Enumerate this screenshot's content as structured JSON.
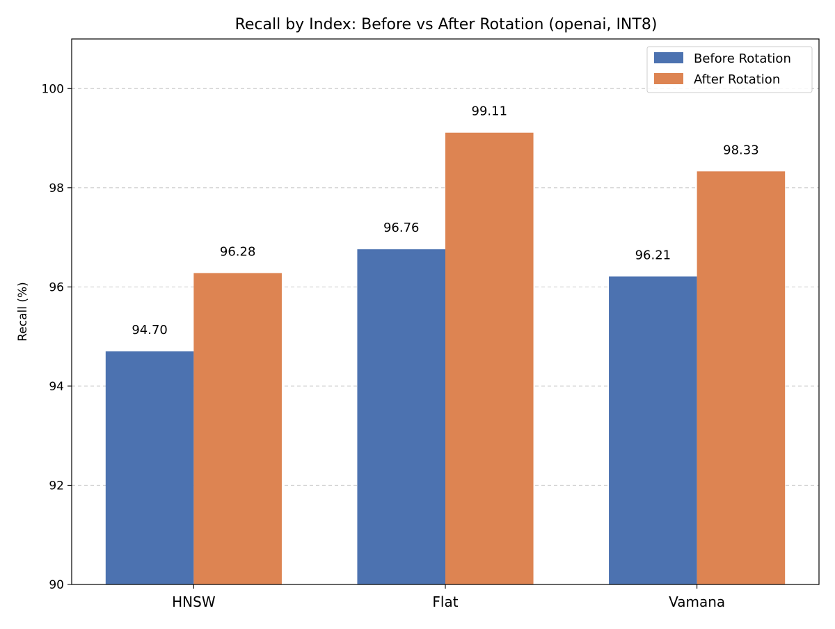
{
  "chart_data": {
    "type": "bar",
    "title": "Recall by Index: Before vs After Rotation (openai, INT8)",
    "xlabel": "",
    "ylabel": "Recall (%)",
    "categories": [
      "HNSW",
      "Flat",
      "Vamana"
    ],
    "series": [
      {
        "name": "Before Rotation",
        "values": [
          94.7,
          96.76,
          96.21
        ],
        "labels": [
          "94.70",
          "96.76",
          "96.21"
        ],
        "color": "#4c72b0"
      },
      {
        "name": "After Rotation",
        "values": [
          96.28,
          99.11,
          98.33
        ],
        "labels": [
          "96.28",
          "99.11",
          "98.33"
        ],
        "color": "#dd8452"
      }
    ],
    "ylim": [
      90,
      101
    ],
    "yticks": [
      90,
      92,
      94,
      96,
      98,
      100
    ],
    "grid": "y-dashed",
    "legend_position": "top-right"
  }
}
